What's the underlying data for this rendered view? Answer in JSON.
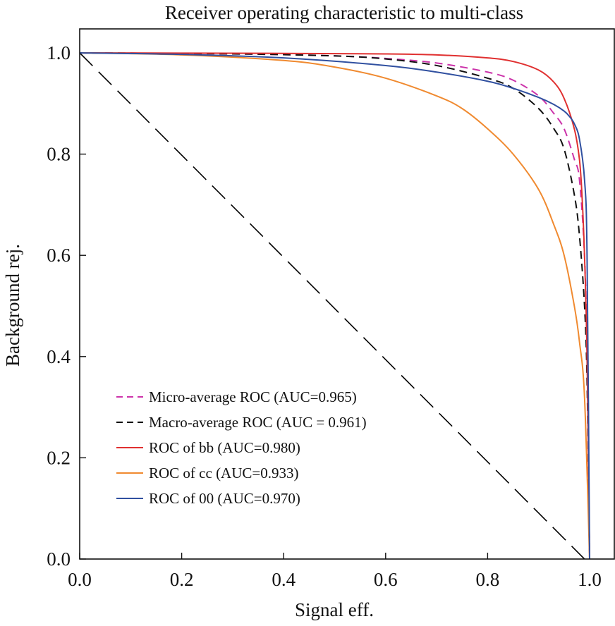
{
  "chart_data": {
    "type": "line",
    "title": "Receiver operating characteristic to multi-class",
    "xlabel": "Signal eff.",
    "ylabel": "Background rej.",
    "xlim": [
      0.0,
      1.0
    ],
    "ylim": [
      0.0,
      1.0
    ],
    "xticks": [
      "0.0",
      "0.2",
      "0.4",
      "0.6",
      "0.8",
      "1.0"
    ],
    "yticks": [
      "0.0",
      "0.2",
      "0.4",
      "0.6",
      "0.8",
      "1.0"
    ],
    "grid": false,
    "legend_position": "lower-left",
    "reference_line": {
      "style": "long-dash",
      "color": "#000000",
      "x": [
        0.0,
        0.99
      ],
      "y": [
        1.0,
        0.0
      ]
    },
    "series": [
      {
        "name": "Micro-average ROC (AUC=0.965)",
        "color": "#cc33aa",
        "style": "dashed",
        "x": [
          0.0,
          0.3,
          0.5,
          0.6,
          0.7,
          0.8,
          0.85,
          0.9,
          0.93,
          0.95,
          0.97,
          0.98,
          0.99,
          0.995,
          1.0
        ],
        "y": [
          1.0,
          0.998,
          0.994,
          0.989,
          0.98,
          0.962,
          0.946,
          0.915,
          0.88,
          0.85,
          0.79,
          0.75,
          0.6,
          0.4,
          0.0
        ]
      },
      {
        "name": "Macro-average ROC (AUC = 0.961)",
        "color": "#111111",
        "style": "dashed",
        "x": [
          0.0,
          0.3,
          0.5,
          0.6,
          0.7,
          0.8,
          0.85,
          0.9,
          0.93,
          0.95,
          0.97,
          0.98,
          0.99,
          0.995,
          1.0
        ],
        "y": [
          1.0,
          0.998,
          0.994,
          0.988,
          0.975,
          0.95,
          0.93,
          0.89,
          0.85,
          0.81,
          0.72,
          0.64,
          0.5,
          0.35,
          0.0
        ]
      },
      {
        "name": "ROC of bb (AUC=0.980)",
        "color": "#e03030",
        "style": "solid",
        "x": [
          0.0,
          0.4,
          0.6,
          0.7,
          0.8,
          0.85,
          0.9,
          0.93,
          0.95,
          0.97,
          0.98,
          0.985,
          0.99,
          0.995,
          1.0
        ],
        "y": [
          1.0,
          0.999,
          0.998,
          0.996,
          0.99,
          0.983,
          0.966,
          0.942,
          0.91,
          0.85,
          0.79,
          0.72,
          0.6,
          0.4,
          0.0
        ]
      },
      {
        "name": "ROC of cc (AUC=0.933)",
        "color": "#f08a30",
        "style": "solid",
        "x": [
          0.0,
          0.2,
          0.4,
          0.5,
          0.6,
          0.7,
          0.75,
          0.8,
          0.85,
          0.9,
          0.93,
          0.95,
          0.97,
          0.98,
          0.99,
          1.0
        ],
        "y": [
          1.0,
          0.996,
          0.985,
          0.972,
          0.95,
          0.915,
          0.89,
          0.85,
          0.8,
          0.73,
          0.66,
          0.6,
          0.5,
          0.43,
          0.32,
          0.0
        ]
      },
      {
        "name": "ROC of 00 (AUC=0.970)",
        "color": "#3050a0",
        "style": "solid",
        "x": [
          0.0,
          0.2,
          0.4,
          0.6,
          0.7,
          0.8,
          0.85,
          0.9,
          0.93,
          0.95,
          0.96,
          0.97,
          0.98,
          0.99,
          0.995,
          1.0
        ],
        "y": [
          1.0,
          0.997,
          0.99,
          0.975,
          0.962,
          0.944,
          0.93,
          0.912,
          0.898,
          0.885,
          0.875,
          0.86,
          0.83,
          0.75,
          0.6,
          0.0
        ]
      }
    ]
  }
}
